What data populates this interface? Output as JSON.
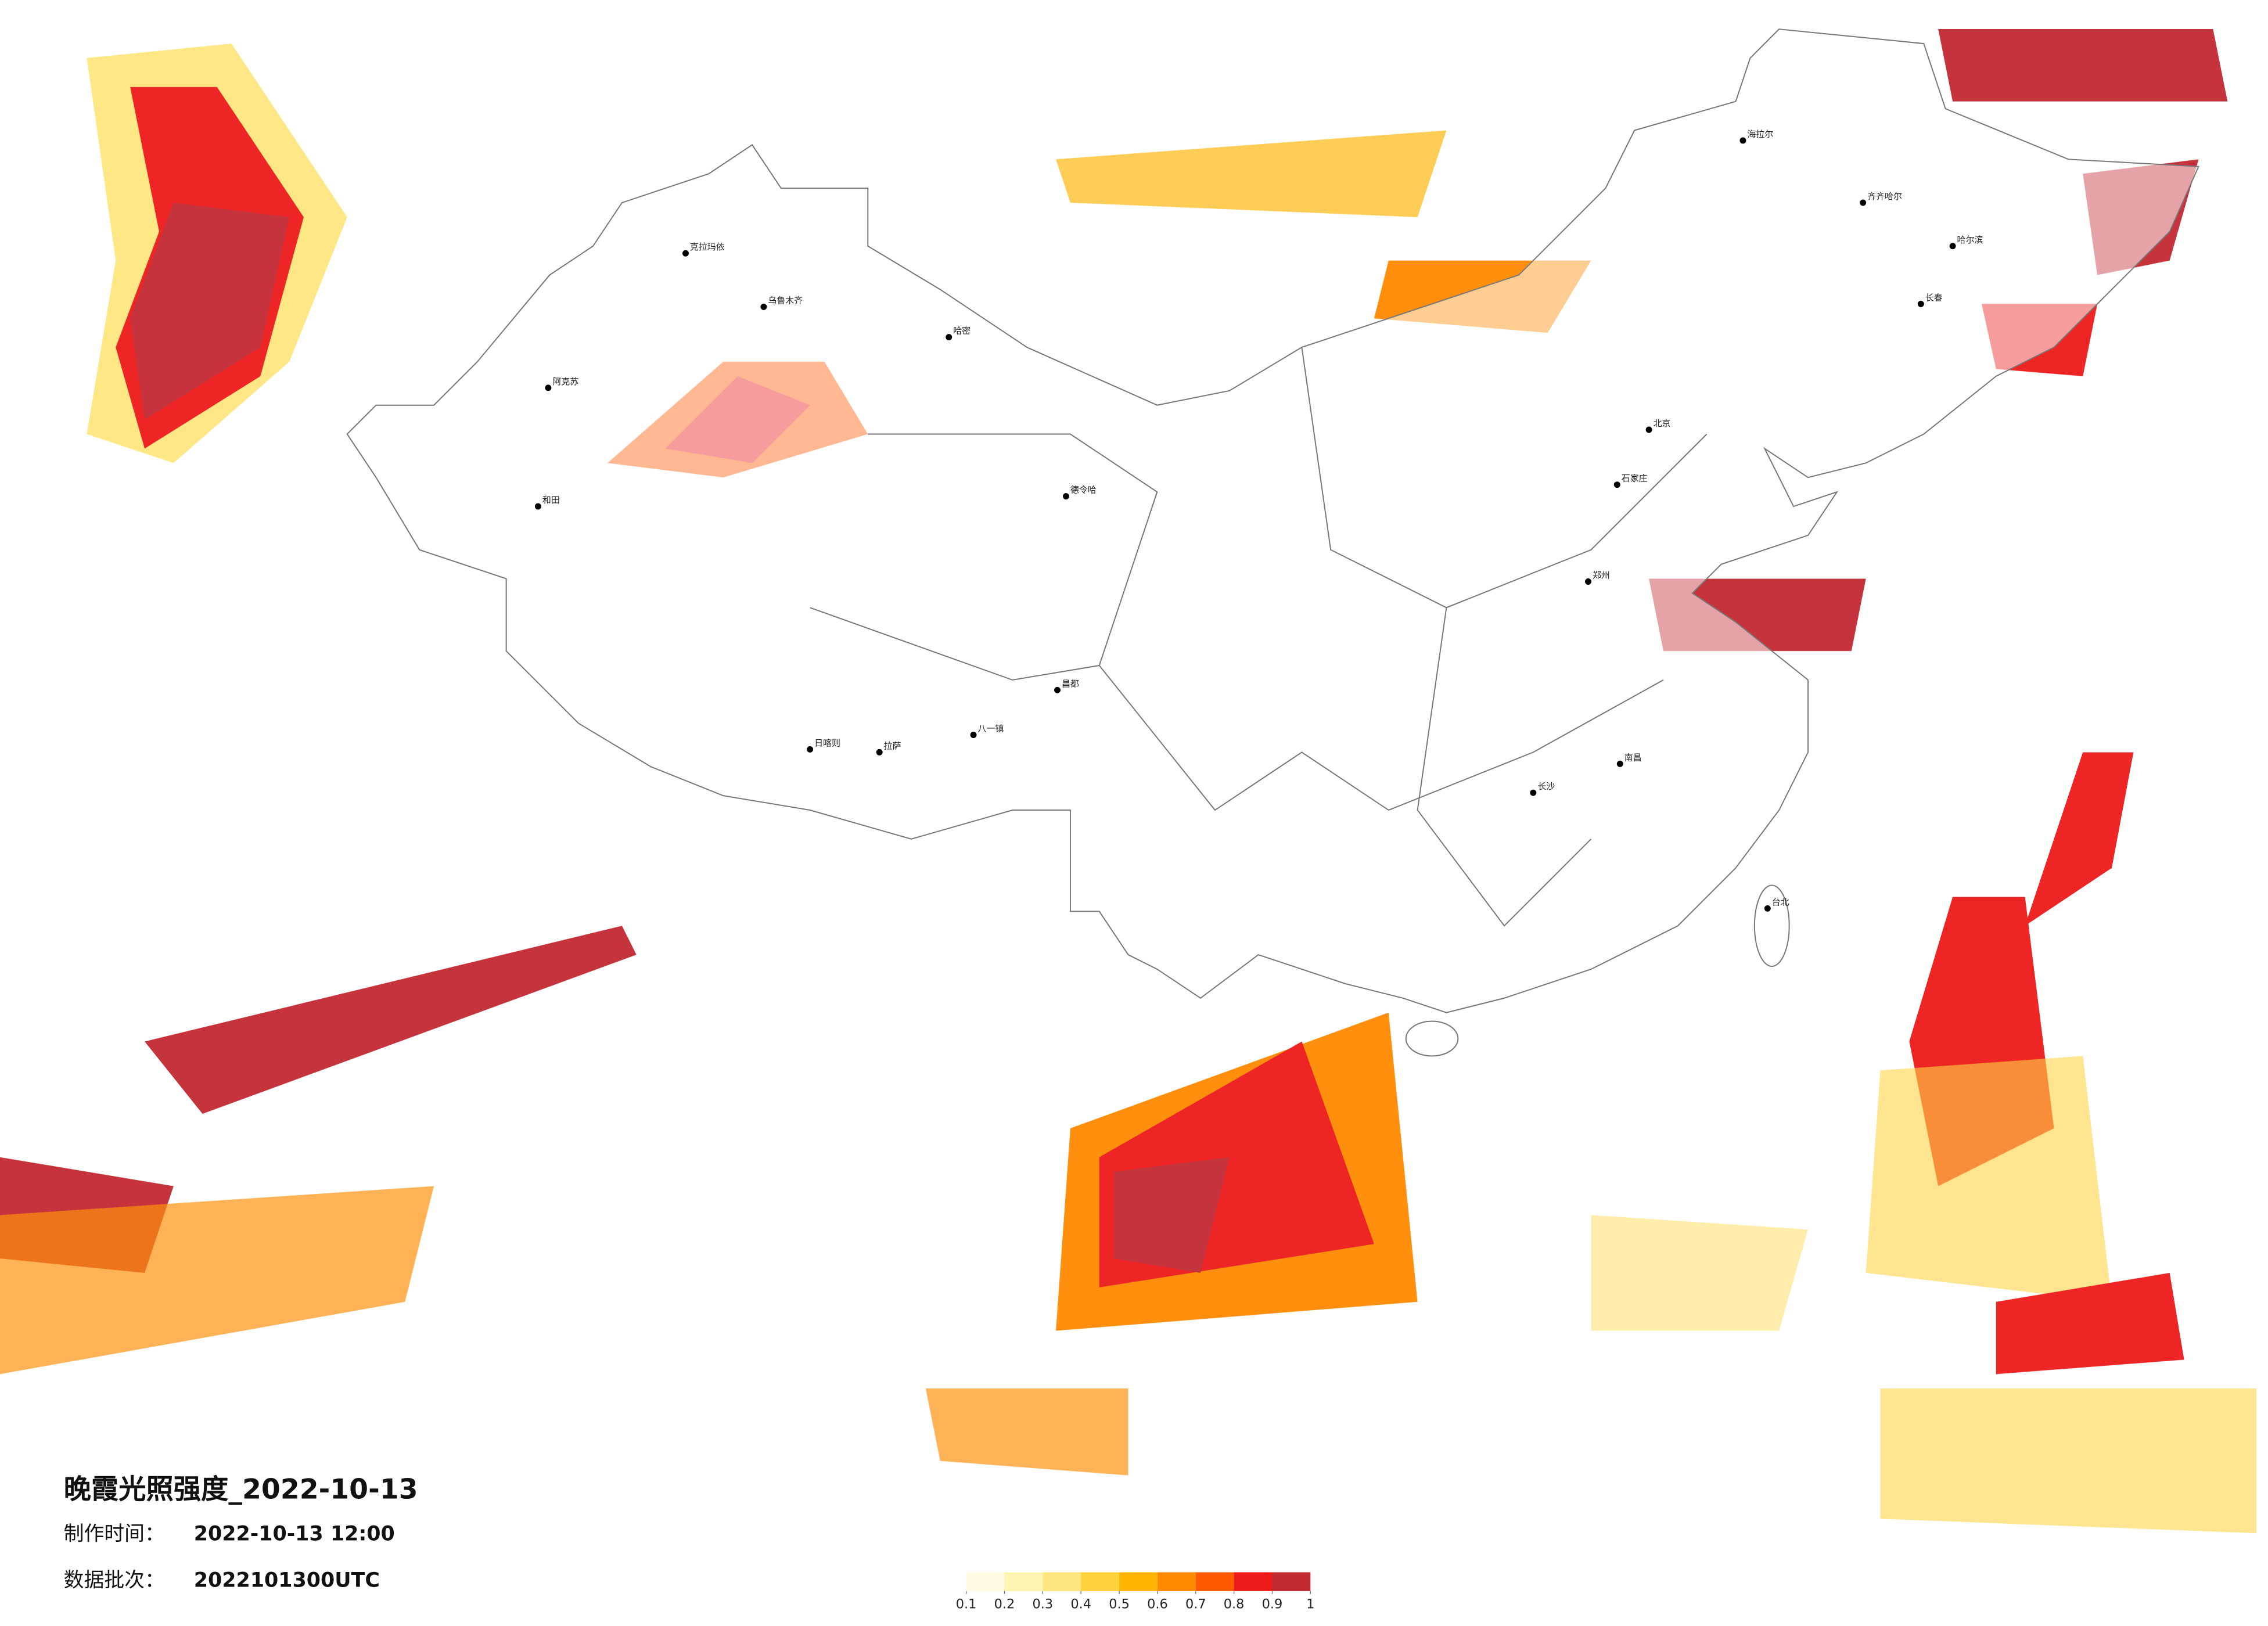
{
  "title": "晚霞光照强度_2022-10-13",
  "made_time": {
    "label": "制作时间：",
    "value": "2022-10-13 12:00"
  },
  "batch": {
    "label": "数据批次：",
    "value": "2022101300UTC"
  },
  "colorbar": {
    "ticks": [
      0.1,
      0.2,
      0.3,
      0.4,
      0.5,
      0.6,
      0.7,
      0.8,
      0.9,
      1
    ],
    "colors": [
      "#fffbe4",
      "#fff3b0",
      "#ffe680",
      "#ffd23c",
      "#ffb400",
      "#ff8a00",
      "#ff5a00",
      "#ee1a1a",
      "#c22a32"
    ]
  },
  "cities": [
    "克拉玛依",
    "乌鲁木齐",
    "哈密",
    "阿克苏",
    "和田",
    "德令哈",
    "拉萨",
    "日喀则",
    "八一镇",
    "昌都",
    "海拉尔",
    "齐齐哈尔",
    "哈尔滨",
    "长春",
    "北京",
    "石家庄",
    "郑州",
    "南昌",
    "长沙",
    "台北"
  ]
}
